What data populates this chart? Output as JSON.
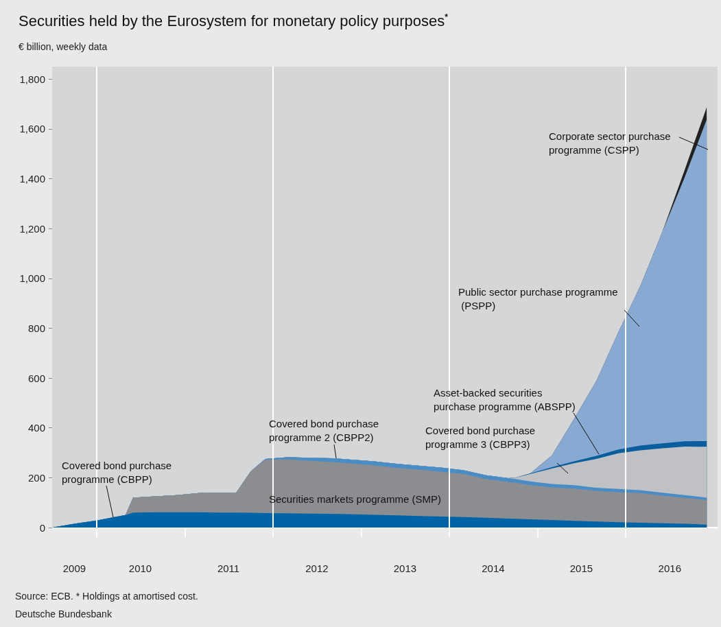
{
  "chart_data": {
    "type": "area",
    "title": "Securities held by the Eurosystem for monetary policy purposes$^{*}$",
    "subtitle": "€ billion, weekly data",
    "annotations": [
      "Source: ECB. * Holdings at amortised cost.",
      "Deutsche Bundesbank"
    ],
    "stacked": true,
    "legend": false,
    "grid": false,
    "x": [
      "2009-07",
      "2009-10",
      "2010-01",
      "2010-04",
      "2010-05",
      "2010-06",
      "2010-09",
      "2010-12",
      "2011-03",
      "2011-06",
      "2011-08",
      "2011-10",
      "2011-12",
      "2012-03",
      "2012-06",
      "2012-09",
      "2012-12",
      "2013-03",
      "2013-06",
      "2013-09",
      "2013-12",
      "2014-03",
      "2014-06",
      "2014-09",
      "2014-10",
      "2014-12",
      "2015-03",
      "2015-06",
      "2015-09",
      "2015-12",
      "2016-03",
      "2016-06",
      "2016-09",
      "2016-12"
    ],
    "xlim": [
      "2009-07-01",
      "2017-01-15"
    ],
    "xticks": [
      {
        "value": "2009-10-01",
        "label": "2009"
      },
      {
        "value": "2010-01-01",
        "label": null
      },
      {
        "value": "2010-07-01",
        "label": "2010"
      },
      {
        "value": "2011-01-01",
        "label": null
      },
      {
        "value": "2011-07-01",
        "label": "2011"
      },
      {
        "value": "2012-01-01",
        "label": null
      },
      {
        "value": "2012-07-01",
        "label": "2012"
      },
      {
        "value": "2013-01-01",
        "label": null
      },
      {
        "value": "2013-07-01",
        "label": "2013"
      },
      {
        "value": "2014-01-01",
        "label": null
      },
      {
        "value": "2014-07-01",
        "label": "2014"
      },
      {
        "value": "2015-01-01",
        "label": null
      },
      {
        "value": "2015-07-01",
        "label": "2015"
      },
      {
        "value": "2016-01-01",
        "label": null
      },
      {
        "value": "2016-07-01",
        "label": "2016"
      }
    ],
    "ylim": [
      0,
      1850
    ],
    "yticks": [
      0,
      200,
      400,
      600,
      800,
      {
        "value": 1000,
        "label": "1,000"
      },
      {
        "value": 1200,
        "label": "1,200"
      },
      {
        "value": 1400,
        "label": "1,400"
      },
      {
        "value": 1600,
        "label": "1,600"
      },
      {
        "value": 1800,
        "label": "1,800"
      }
    ],
    "ref_lines": [
      {
        "axis": "x",
        "value": "2010-01-01",
        "color": "#ffffff"
      },
      {
        "axis": "x",
        "value": "2012-01-01",
        "color": "#ffffff"
      },
      {
        "axis": "x",
        "value": "2014-01-01",
        "color": "#ffffff"
      },
      {
        "axis": "x",
        "value": "2016-01-01",
        "color": "#ffffff"
      }
    ],
    "series": [
      {
        "name": "Covered bond purchase programme (CBPP)",
        "color": "#0064a6",
        "values": [
          0,
          15,
          28,
          45,
          50,
          60,
          61,
          61,
          61,
          60,
          60,
          59,
          58,
          57,
          56,
          55,
          53,
          51,
          49,
          46,
          44,
          42,
          39,
          36,
          35,
          33,
          30,
          27,
          24,
          21,
          19,
          17,
          15,
          12
        ]
      },
      {
        "name": "Securities markets programme (SMP)",
        "color": "#8c8d90",
        "values": [
          0,
          0,
          0,
          0,
          0,
          60,
          64,
          69,
          77,
          80,
          78,
          166,
          214,
          217,
          212,
          208,
          203,
          198,
          190,
          186,
          180,
          173,
          156,
          147,
          145,
          137,
          131,
          129,
          123,
          121,
          119,
          111,
          104,
          98
        ]
      },
      {
        "name": "Covered bond purchase programme 2 (CBPP2)",
        "color": "#4a8dc6",
        "values": [
          0,
          0,
          0,
          0,
          0,
          0,
          0,
          0,
          0,
          0,
          0,
          0,
          3,
          8,
          12,
          15,
          16,
          16,
          16,
          16,
          16,
          15,
          15,
          15,
          15,
          15,
          14,
          14,
          13,
          13,
          12,
          12,
          11,
          10
        ]
      },
      {
        "name": "Covered bond purchase programme 3 (CBPP3)",
        "color": "#c0c1c5",
        "values": [
          0,
          0,
          0,
          0,
          0,
          0,
          0,
          0,
          0,
          0,
          0,
          0,
          0,
          0,
          0,
          0,
          0,
          0,
          0,
          0,
          0,
          0,
          0,
          0,
          5,
          30,
          62,
          88,
          115,
          143,
          160,
          178,
          195,
          204
        ]
      },
      {
        "name": "Asset-backed securities purchase programme (ABSPP)",
        "color": "#0a5e9e",
        "values": [
          0,
          0,
          0,
          0,
          0,
          0,
          0,
          0,
          0,
          0,
          0,
          0,
          0,
          0,
          0,
          0,
          0,
          0,
          0,
          0,
          0,
          0,
          0,
          0,
          0,
          2,
          5,
          8,
          13,
          15,
          19,
          20,
          21,
          23
        ]
      },
      {
        "name": "Public sector purchase programme (PSPP)",
        "color": "#88a9d2",
        "values": [
          0,
          0,
          0,
          0,
          0,
          0,
          0,
          0,
          0,
          0,
          0,
          0,
          0,
          0,
          0,
          0,
          0,
          0,
          0,
          0,
          0,
          0,
          0,
          0,
          0,
          0,
          47,
          170,
          300,
          470,
          640,
          850,
          1060,
          1290
        ]
      },
      {
        "name": "Corporate sector purchase programme (CSPP)",
        "color": "#222222",
        "values": [
          0,
          0,
          0,
          0,
          0,
          0,
          0,
          0,
          0,
          0,
          0,
          0,
          0,
          0,
          0,
          0,
          0,
          0,
          0,
          0,
          0,
          0,
          0,
          0,
          0,
          0,
          0,
          0,
          0,
          0,
          0,
          0,
          30,
          50
        ]
      }
    ]
  }
}
